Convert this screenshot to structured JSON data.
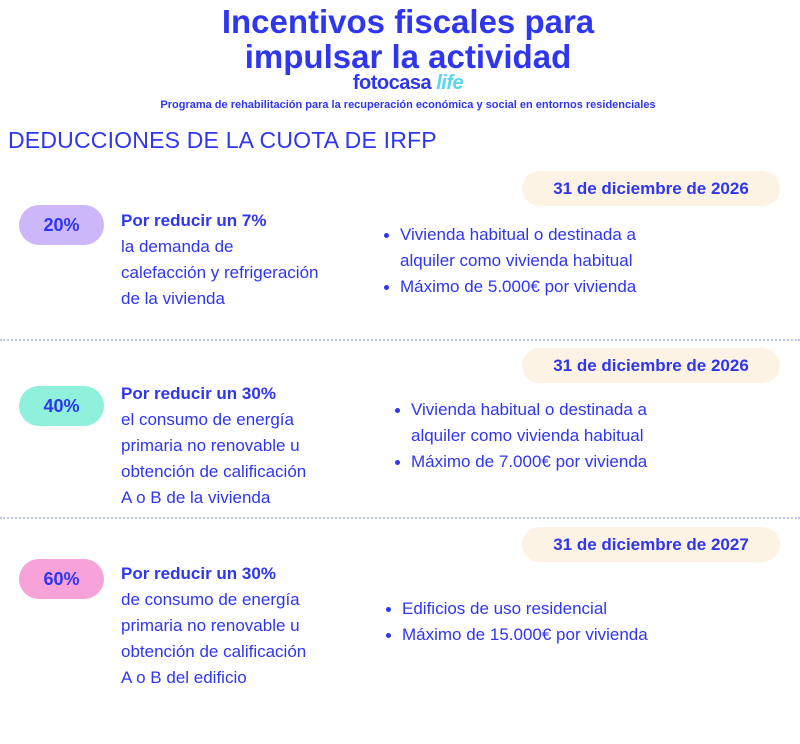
{
  "header": {
    "title_line1": "Incentivos fiscales para",
    "title_line2": "impulsar la actividad",
    "brand_main": "fotocasa",
    "brand_accent": "life",
    "subtitle": "Programa de rehabilitación para la recuperación económica y social en entornos residenciales"
  },
  "section_title": "DEDUCCIONES DE LA CUOTA DE IRFP",
  "deductions": [
    {
      "percent": "20%",
      "color": "#cdb7fb",
      "date": "31 de diciembre de 2026",
      "lead": "Por reducir un 7%",
      "desc_lines": [
        "la demanda de",
        "calefacción y refrigeración",
        "de la vivienda"
      ],
      "bullets": [
        "Vivienda habitual o destinada a",
        "alquiler como vivienda habitual",
        "Máximo de 5.000€ por vivienda"
      ]
    },
    {
      "percent": "40%",
      "color": "#8ff0dc",
      "date": "31 de diciembre de 2026",
      "lead": "Por reducir un 30%",
      "desc_lines": [
        "el consumo de energía",
        "primaria no renovable u",
        "obtención de calificación",
        "A o B de la vivienda"
      ],
      "bullets": [
        "Vivienda habitual o destinada a",
        "alquiler como vivienda habitual",
        "Máximo de 7.000€ por vivienda"
      ]
    },
    {
      "percent": "60%",
      "color": "#f7a2d8",
      "date": "31 de diciembre de 2027",
      "lead": "Por reducir un 30%",
      "desc_lines": [
        "de consumo de energía",
        "primaria no renovable u",
        "obtención de calificación",
        "A o B del edificio"
      ],
      "bullets": [
        "Edificios de uso residencial",
        "Máximo de 15.000€ por vivienda"
      ]
    }
  ]
}
